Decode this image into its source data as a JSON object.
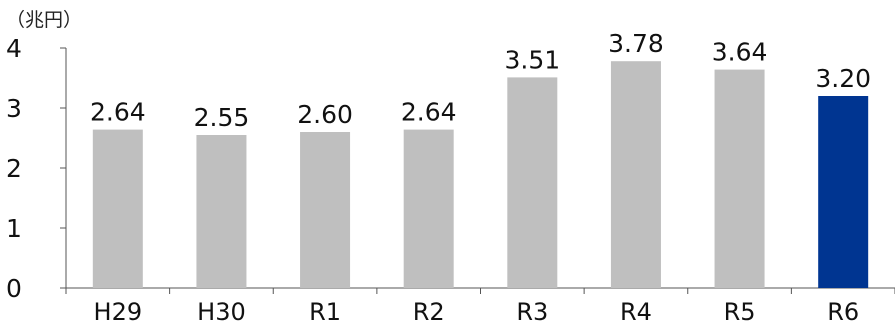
{
  "chart_data": {
    "type": "bar",
    "unit_label": "（兆円）",
    "categories": [
      "H29",
      "H30",
      "R1",
      "R2",
      "R3",
      "R4",
      "R5",
      "R6"
    ],
    "values": [
      2.64,
      2.55,
      2.6,
      2.64,
      3.51,
      3.78,
      3.64,
      3.2
    ],
    "data_labels": [
      "2.64",
      "2.55",
      "2.60",
      "2.64",
      "3.51",
      "3.78",
      "3.64",
      "3.20"
    ],
    "y_ticks": [
      "0",
      "1",
      "2",
      "3",
      "4"
    ],
    "ylim": [
      0,
      4
    ],
    "grid": false,
    "bar_color": "#bfbfbf",
    "highlight_color": "#003591",
    "highlight_category": "R6"
  }
}
